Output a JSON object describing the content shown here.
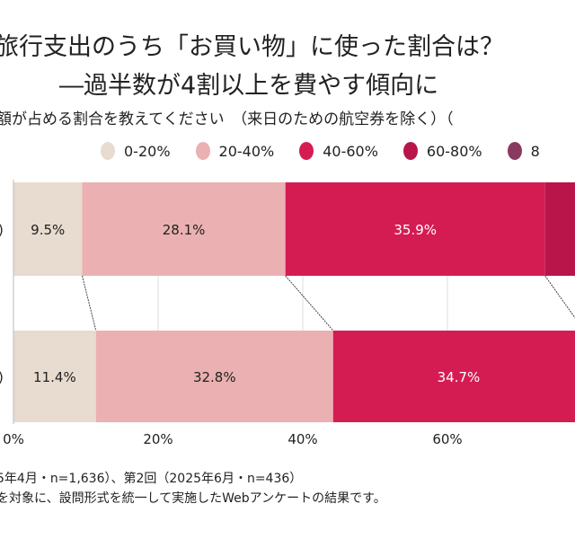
{
  "title_line1": "旅行支出のうち「お買い物」に使った割合は？",
  "title_line2": "―過半数が4割以上を費やす傾向に",
  "subtitle": "額が占める割合を教えてください　（来日のための航空券を除く）（",
  "notes": [
    "5年4月・n=1,636）、第2回（2025年6月・n=436）",
    "を対象に、設問形式を統一して実施したWebアンケートの結果です。"
  ],
  "chart_data": {
    "type": "bar",
    "orientation": "horizontal-stacked",
    "categories": [
      ")",
      ")"
    ],
    "legend": [
      {
        "label": "0-20%",
        "color": "#e8dbcf"
      },
      {
        "label": "20-40%",
        "color": "#ebb0b1"
      },
      {
        "label": "40-60%",
        "color": "#d41c53"
      },
      {
        "label": "60-80%",
        "color": "#b9154a"
      },
      {
        "label": "8",
        "color": "#8a3a5e"
      }
    ],
    "series": [
      {
        "name": "0-20%",
        "values": [
          9.5,
          11.4
        ],
        "labels": [
          "9.5%",
          "11.4%"
        ]
      },
      {
        "name": "20-40%",
        "values": [
          28.1,
          32.8
        ],
        "labels": [
          "28.1%",
          "32.8%"
        ]
      },
      {
        "name": "40-60%",
        "values": [
          35.9,
          34.7
        ],
        "labels": [
          "35.9%",
          "34.7%"
        ]
      },
      {
        "name": "60-80%",
        "values": [
          null,
          null
        ],
        "labels": [
          "",
          ""
        ]
      }
    ],
    "xticks": [
      "0%",
      "20%",
      "40%",
      "60%"
    ],
    "xtick_values": [
      0,
      20,
      40,
      60
    ],
    "xlim": [
      0,
      100
    ],
    "grid": true
  }
}
